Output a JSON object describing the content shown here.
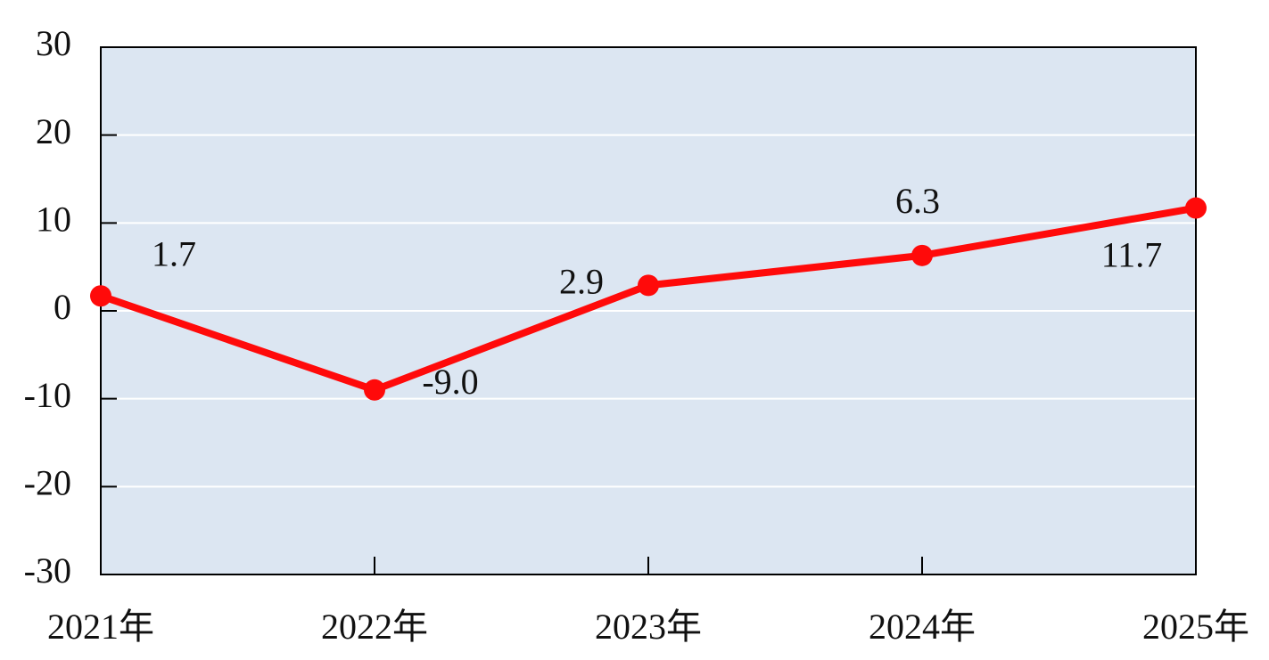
{
  "chart_data": {
    "type": "line",
    "categories": [
      "2021年",
      "2022年",
      "2023年",
      "2024年",
      "2025年"
    ],
    "values": [
      1.7,
      -9.0,
      2.9,
      6.3,
      11.7
    ],
    "value_labels": [
      "1.7",
      "-9.0",
      "2.9",
      "6.3",
      "11.7"
    ],
    "color": "#ff0a0a",
    "ylim": [
      -30,
      30
    ],
    "yticks": [
      -30,
      -20,
      -10,
      0,
      10,
      20,
      30
    ],
    "grid": true
  }
}
